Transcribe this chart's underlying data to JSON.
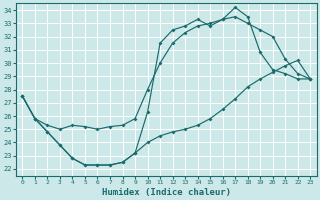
{
  "xlabel": "Humidex (Indice chaleur)",
  "bg_color": "#cde8e8",
  "grid_color": "#b8d8d8",
  "line_color": "#1a6b6b",
  "xlim": [
    -0.5,
    23.5
  ],
  "ylim": [
    21.5,
    34.5
  ],
  "xticks": [
    0,
    1,
    2,
    3,
    4,
    5,
    6,
    7,
    8,
    9,
    10,
    11,
    12,
    13,
    14,
    15,
    16,
    17,
    18,
    19,
    20,
    21,
    22,
    23
  ],
  "yticks": [
    22,
    23,
    24,
    25,
    26,
    27,
    28,
    29,
    30,
    31,
    32,
    33,
    34
  ],
  "line1_x": [
    0,
    1,
    2,
    3,
    4,
    5,
    6,
    7,
    8,
    9,
    10,
    11,
    12,
    13,
    14,
    15,
    16,
    17,
    18,
    19,
    20,
    21,
    22,
    23
  ],
  "line1_y": [
    27.5,
    25.8,
    24.8,
    23.8,
    22.8,
    22.3,
    22.3,
    22.3,
    22.5,
    23.2,
    26.3,
    31.5,
    32.5,
    32.8,
    33.3,
    32.8,
    33.3,
    34.2,
    33.5,
    30.8,
    29.5,
    29.2,
    28.8,
    28.8
  ],
  "line2_x": [
    0,
    1,
    2,
    3,
    4,
    5,
    6,
    7,
    8,
    9,
    10,
    11,
    12,
    13,
    14,
    15,
    16,
    17,
    18,
    19,
    20,
    21,
    22,
    23
  ],
  "line2_y": [
    27.5,
    25.8,
    25.3,
    25.0,
    25.3,
    25.2,
    25.0,
    25.2,
    25.3,
    25.8,
    28.0,
    30.0,
    31.5,
    32.3,
    32.8,
    33.0,
    33.3,
    33.5,
    33.0,
    32.5,
    32.0,
    30.3,
    29.2,
    28.8
  ],
  "line3_x": [
    0,
    1,
    2,
    3,
    4,
    5,
    6,
    7,
    8,
    9,
    10,
    11,
    12,
    13,
    14,
    15,
    16,
    17,
    18,
    19,
    20,
    21,
    22,
    23
  ],
  "line3_y": [
    27.5,
    25.8,
    24.8,
    23.8,
    22.8,
    22.3,
    22.3,
    22.3,
    22.5,
    23.2,
    24.0,
    24.5,
    24.8,
    25.0,
    25.3,
    25.8,
    26.5,
    27.3,
    28.2,
    28.8,
    29.3,
    29.8,
    30.2,
    28.8
  ]
}
